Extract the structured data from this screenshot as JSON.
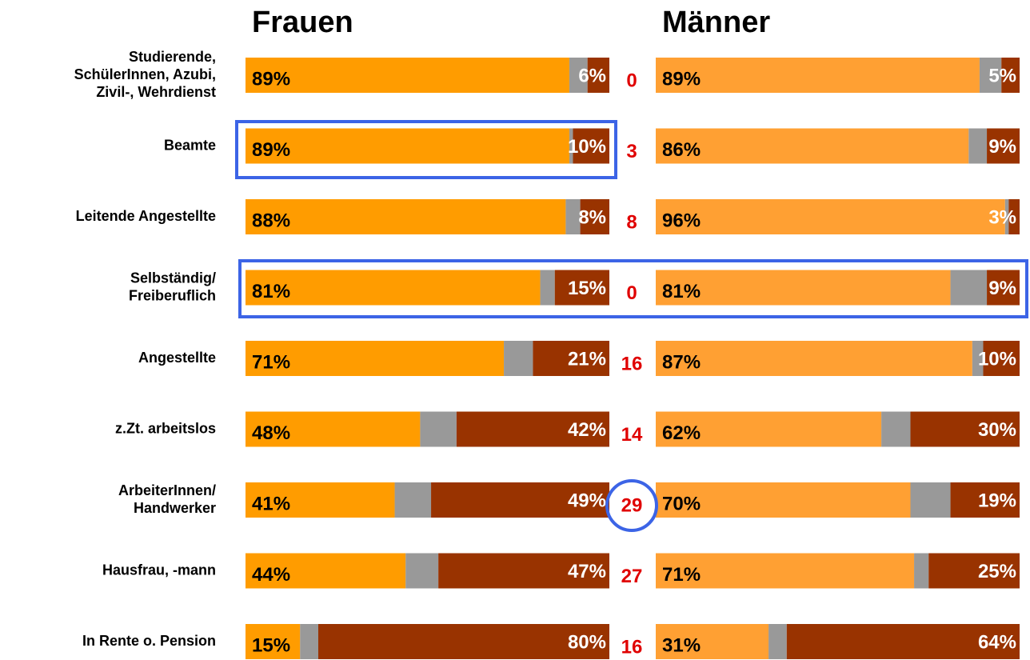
{
  "chart_data": {
    "type": "stacked-bar",
    "orientation": "horizontal",
    "xlim": [
      0,
      100
    ],
    "categories": [
      [
        "Studierende,",
        "SchülerInnen, Azubi,",
        "Zivil-, Wehrdienst"
      ],
      [
        "Beamte"
      ],
      [
        "Leitende Angestellte"
      ],
      [
        "Selbständig/",
        "Freiberuflich"
      ],
      [
        "Angestellte"
      ],
      [
        "z.Zt. arbeitslos"
      ],
      [
        "ArbeiterInnen/",
        "Handwerker"
      ],
      [
        "Hausfrau, -mann"
      ],
      [
        "In Rente o. Pension"
      ]
    ],
    "differences": [
      0,
      3,
      8,
      0,
      16,
      14,
      29,
      27,
      16
    ],
    "panels": [
      {
        "title": "Frauen",
        "series": [
          {
            "color": "#ff9c00",
            "values": [
              89,
              89,
              88,
              81,
              71,
              48,
              41,
              44,
              15
            ],
            "value_labels": [
              "89%",
              "89%",
              "88%",
              "81%",
              "71%",
              "48%",
              "41%",
              "44%",
              "15%"
            ]
          },
          {
            "color": "#999999",
            "values": [
              5,
              1,
              4,
              4,
              8,
              10,
              10,
              9,
              5
            ]
          },
          {
            "color": "#993300",
            "values": [
              6,
              10,
              8,
              15,
              21,
              42,
              49,
              47,
              80
            ],
            "value_labels": [
              "6%",
              "10%",
              "8%",
              "15%",
              "21%",
              "42%",
              "49%",
              "47%",
              "80%"
            ]
          }
        ]
      },
      {
        "title": "Männer",
        "series": [
          {
            "color": "#ffa033",
            "values": [
              89,
              86,
              96,
              81,
              87,
              62,
              70,
              71,
              31
            ],
            "value_labels": [
              "89%",
              "86%",
              "96%",
              "81%",
              "87%",
              "62%",
              "70%",
              "71%",
              "31%"
            ]
          },
          {
            "color": "#999999",
            "values": [
              6,
              5,
              1,
              10,
              3,
              8,
              11,
              4,
              5
            ]
          },
          {
            "color": "#993300",
            "values": [
              5,
              9,
              3,
              9,
              10,
              30,
              19,
              25,
              64
            ],
            "value_labels": [
              "5%",
              "9%",
              "3%",
              "9%",
              "10%",
              "30%",
              "19%",
              "25%",
              "64%"
            ]
          }
        ]
      }
    ]
  }
}
